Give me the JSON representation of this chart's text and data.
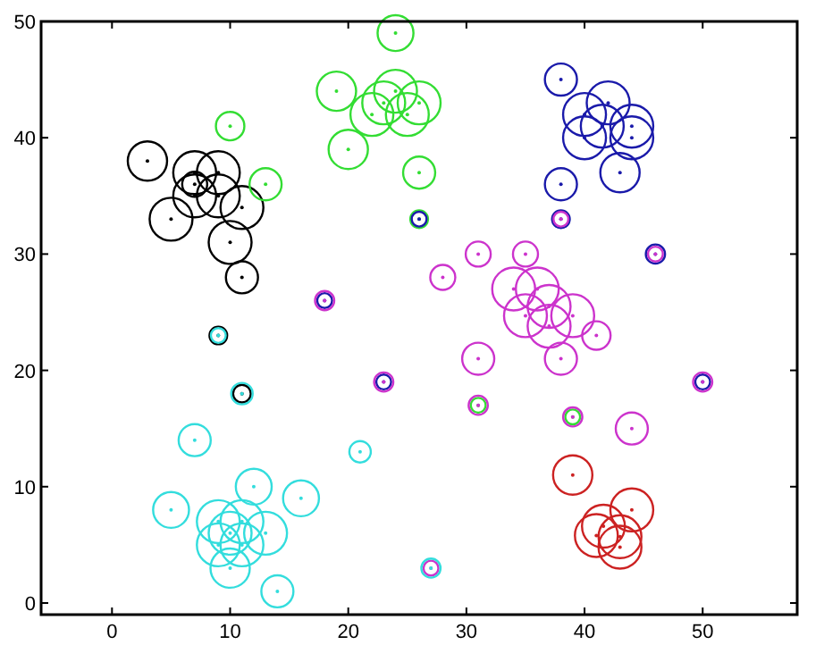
{
  "chart_data": {
    "type": "bubble",
    "xlim": [
      -6,
      58
    ],
    "ylim": [
      -1,
      50
    ],
    "xticks": [
      0,
      10,
      20,
      30,
      40,
      50
    ],
    "yticks": [
      0,
      10,
      20,
      30,
      40,
      50
    ],
    "grid": false,
    "series": [
      {
        "color": "#000000",
        "x": [
          3,
          7,
          9,
          7,
          9,
          5,
          10,
          11,
          7,
          11,
          9,
          11
        ],
        "values": [
          38,
          37,
          37,
          35,
          35,
          33,
          31,
          34,
          36,
          28,
          23,
          18
        ],
        "sizes": [
          0.84,
          1,
          1,
          1,
          1,
          1,
          1,
          1,
          0.34,
          0.56,
          0.17,
          0.17
        ]
      },
      {
        "color": "#33dd33",
        "x": [
          10,
          13,
          19,
          20,
          24,
          23,
          24,
          22,
          25,
          26,
          26,
          26,
          31,
          39
        ],
        "values": [
          41,
          36,
          44,
          39,
          49,
          43,
          44,
          42,
          42,
          43,
          37,
          33,
          17,
          16
        ],
        "sizes": [
          0.44,
          0.56,
          0.84,
          0.84,
          0.7,
          1,
          1,
          1,
          1,
          1,
          0.56,
          0.17,
          0.12,
          0.12
        ]
      },
      {
        "color": "#1a1aaa",
        "x": [
          38,
          42,
          41.5,
          40,
          40,
          44,
          44,
          43,
          38,
          38,
          46,
          26,
          50,
          23,
          18
        ],
        "values": [
          45,
          43,
          41,
          42,
          40,
          41,
          40,
          37,
          36,
          33,
          30,
          33,
          19,
          19,
          26
        ],
        "sizes": [
          0.56,
          1,
          1,
          1,
          1,
          1,
          1,
          0.84,
          0.56,
          0.17,
          0.2,
          0.12,
          0.12,
          0.12,
          0.12
        ]
      },
      {
        "color": "#cc33cc",
        "x": [
          31,
          35,
          28,
          34,
          36,
          37,
          39,
          37,
          35,
          41,
          31,
          38,
          31,
          39,
          44,
          50,
          23,
          18,
          38,
          46,
          27
        ],
        "values": [
          30,
          30,
          28,
          27,
          27,
          25.5,
          24.7,
          23.8,
          24.7,
          23,
          21,
          21,
          17,
          16,
          15,
          19,
          19,
          26,
          33,
          30,
          3
        ],
        "sizes": [
          0.34,
          0.34,
          0.34,
          1,
          1,
          1,
          1,
          1,
          1,
          0.44,
          0.56,
          0.56,
          0.2,
          0.2,
          0.56,
          0.2,
          0.2,
          0.2,
          0.12,
          0.12,
          0.12
        ]
      },
      {
        "color": "#cc2222",
        "x": [
          39,
          41.6,
          44,
          43,
          43,
          41
        ],
        "values": [
          11,
          6.6,
          8,
          5.7,
          4.8,
          5.8
        ],
        "sizes": [
          0.84,
          1,
          1,
          1,
          1,
          1
        ]
      },
      {
        "color": "#33dddd",
        "x": [
          7,
          12,
          16,
          5,
          10,
          9,
          11,
          13,
          9,
          11,
          10,
          14,
          11,
          21,
          9,
          27
        ],
        "values": [
          14,
          10,
          9,
          8,
          6,
          7,
          7,
          6,
          5,
          5,
          3,
          1,
          18,
          13,
          23,
          3
        ],
        "sizes": [
          0.56,
          0.7,
          0.7,
          0.7,
          1,
          1,
          1,
          1,
          1,
          1,
          0.84,
          0.56,
          0.25,
          0.25,
          0.12,
          0.2
        ]
      }
    ]
  }
}
